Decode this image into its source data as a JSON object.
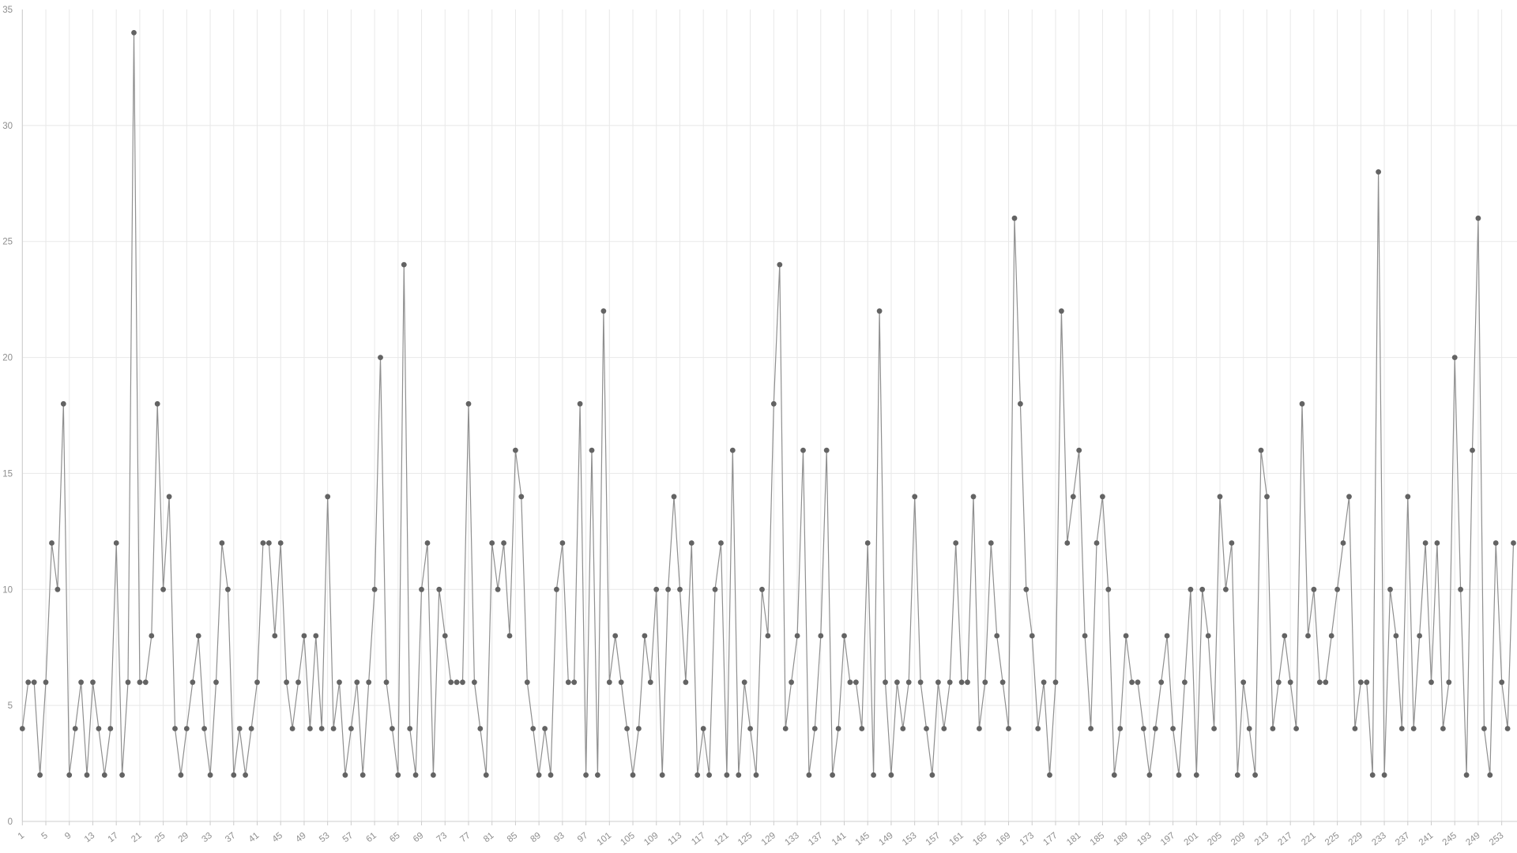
{
  "chart_data": {
    "type": "line",
    "title": "",
    "xlabel": "",
    "ylabel": "",
    "x_start": 1,
    "x_tick_step": 4,
    "x_tick_labels": [
      "1",
      "5",
      "9",
      "13",
      "17",
      "21",
      "25",
      "29",
      "33",
      "37",
      "41",
      "45",
      "49",
      "53",
      "57",
      "61",
      "65",
      "69",
      "73",
      "77",
      "81",
      "85",
      "89",
      "93",
      "97",
      "101",
      "105",
      "109",
      "113",
      "117",
      "121",
      "125",
      "129",
      "133",
      "137",
      "141",
      "145",
      "149",
      "153",
      "157",
      "161",
      "165",
      "169",
      "173",
      "177",
      "181",
      "185",
      "189",
      "193",
      "197",
      "201",
      "205",
      "209",
      "213",
      "217",
      "221",
      "225",
      "229",
      "233",
      "237",
      "241",
      "245",
      "249",
      "253"
    ],
    "y_ticks": [
      "0",
      "5",
      "10",
      "15",
      "20",
      "25",
      "30",
      "35"
    ],
    "ylim": [
      0,
      35
    ],
    "grid": true,
    "legend_position": "none",
    "values": [
      4,
      6,
      6,
      2,
      6,
      12,
      10,
      18,
      2,
      4,
      6,
      2,
      6,
      4,
      2,
      4,
      12,
      2,
      6,
      34,
      6,
      6,
      8,
      18,
      10,
      14,
      4,
      2,
      4,
      6,
      8,
      4,
      2,
      6,
      12,
      10,
      2,
      4,
      2,
      4,
      6,
      12,
      12,
      8,
      12,
      6,
      4,
      6,
      8,
      4,
      8,
      4,
      14,
      4,
      6,
      2,
      4,
      6,
      2,
      6,
      10,
      20,
      6,
      4,
      2,
      24,
      4,
      2,
      10,
      12,
      2,
      10,
      8,
      6,
      6,
      6,
      18,
      6,
      4,
      2,
      12,
      10,
      12,
      8,
      16,
      14,
      6,
      4,
      2,
      4,
      2,
      10,
      12,
      6,
      6,
      18,
      2,
      16,
      2,
      22,
      6,
      8,
      6,
      4,
      2,
      4,
      8,
      6,
      10,
      2,
      10,
      14,
      10,
      6,
      12,
      2,
      4,
      2,
      10,
      12,
      2,
      16,
      2,
      6,
      4,
      2,
      10,
      8,
      18,
      24,
      4,
      6,
      8,
      16,
      2,
      4,
      8,
      16,
      2,
      4,
      8,
      6,
      6,
      4,
      12,
      2,
      22,
      6,
      2,
      6,
      4,
      6,
      14,
      6,
      4,
      2,
      6,
      4,
      6,
      12,
      6,
      6,
      14,
      4,
      6,
      12,
      8,
      6,
      4,
      26,
      18,
      10,
      8,
      4,
      6,
      2,
      6,
      22,
      12,
      14,
      16,
      8,
      4,
      12,
      14,
      10,
      2,
      4,
      8,
      6,
      6,
      4,
      2,
      4,
      6,
      8,
      4,
      2,
      6,
      10,
      2,
      10,
      8,
      4,
      14,
      10,
      12,
      2,
      6,
      4,
      2,
      16,
      14,
      4,
      6,
      8,
      6,
      4,
      18,
      8,
      10,
      6,
      6,
      8,
      10,
      12,
      14,
      4,
      6,
      6,
      2,
      28,
      2,
      10,
      8,
      4,
      14,
      4,
      8,
      12,
      6,
      12,
      4,
      6,
      20,
      10,
      2,
      16,
      26,
      4,
      2,
      12,
      6,
      4,
      12
    ],
    "colors": {
      "line": "#8f8f8f",
      "point": "#636363",
      "grid": "#e8e8e8",
      "axis": "#cccccc",
      "tick_label": "#8e8e8e"
    }
  }
}
